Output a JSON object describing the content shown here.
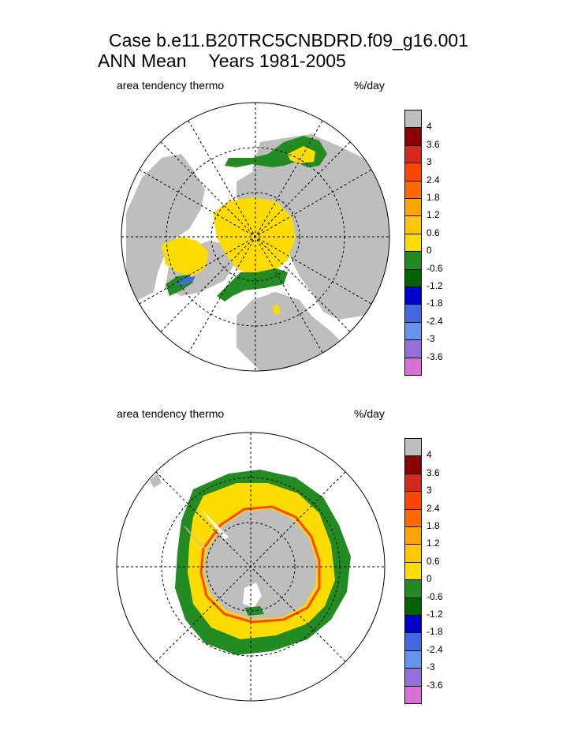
{
  "title": {
    "line1": "Case b.e11.B20TRC5CNBDRD.f09_g16.001",
    "line2_left": "ANN Mean",
    "line2_right": "Years 1981-2005"
  },
  "chart_data": [
    {
      "type": "heatmap",
      "projection": "north-polar-stereographic",
      "label": "area tendency thermo",
      "units": "%/day",
      "legend_placement": "right",
      "grid": true,
      "colorbar": {
        "levels": [
          "4",
          "3.6",
          "3",
          "2.4",
          "1.8",
          "1.2",
          "0.6",
          "0",
          "-0.6",
          "-1.2",
          "-1.8",
          "-2.4",
          "-3",
          "-3.6"
        ],
        "colors": [
          "#bebebe",
          "#8b0000",
          "#d2281e",
          "#ff4500",
          "#ff6a00",
          "#ffa500",
          "#ffc800",
          "#ffdc00",
          "#228b22",
          "#006400",
          "#0000cd",
          "#4169e1",
          "#6495ed",
          "#9370db",
          "#da70d6"
        ]
      }
    },
    {
      "type": "heatmap",
      "projection": "south-polar-stereographic",
      "label": "area tendency thermo",
      "units": "%/day",
      "legend_placement": "right",
      "grid": true,
      "colorbar": {
        "levels": [
          "4",
          "3.6",
          "3",
          "2.4",
          "1.8",
          "1.2",
          "0.6",
          "0",
          "-0.6",
          "-1.2",
          "-1.8",
          "-2.4",
          "-3",
          "-3.6"
        ],
        "colors": [
          "#bebebe",
          "#8b0000",
          "#d2281e",
          "#ff4500",
          "#ff6a00",
          "#ffa500",
          "#ffc800",
          "#ffdc00",
          "#228b22",
          "#006400",
          "#0000cd",
          "#4169e1",
          "#6495ed",
          "#9370db",
          "#da70d6"
        ]
      }
    }
  ]
}
